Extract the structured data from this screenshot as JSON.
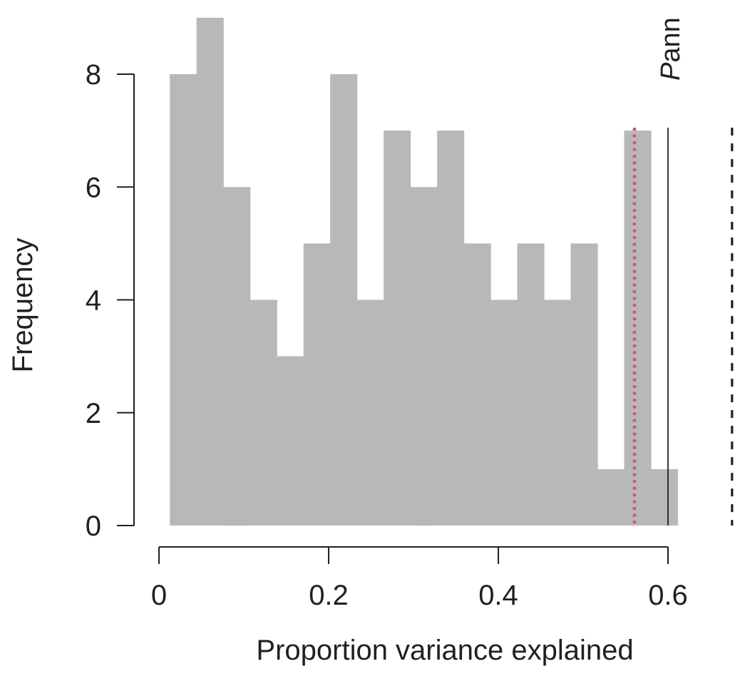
{
  "chart_data": {
    "type": "bar",
    "bin_edges": [
      0.0128,
      0.0443,
      0.0758,
      0.1073,
      0.1388,
      0.1703,
      0.2018,
      0.2333,
      0.2648,
      0.2963,
      0.3278,
      0.3593,
      0.3908,
      0.4223,
      0.4538,
      0.4853,
      0.5168,
      0.5483,
      0.5798,
      0.6113
    ],
    "values": [
      8,
      9,
      6,
      4,
      3,
      5,
      8,
      4,
      7,
      6,
      7,
      5,
      4,
      5,
      4,
      5,
      1,
      7,
      1
    ],
    "title": "",
    "xlabel": "Proportion variance explained",
    "ylabel": "Frequency",
    "xlim": [
      0,
      0.6
    ],
    "ylim": [
      0,
      8
    ],
    "x_ticks": [
      0,
      0.2,
      0.4,
      0.6
    ],
    "x_tick_labels": [
      "0",
      "0.2",
      "0.4",
      "0.6"
    ],
    "y_ticks": [
      0,
      2,
      4,
      6,
      8
    ],
    "y_tick_labels": [
      "0",
      "2",
      "4",
      "6",
      "8"
    ],
    "grid": false,
    "reference_lines": [
      {
        "x": 0.5605,
        "style": "dotted",
        "color": "#d4556a",
        "top_value": 7.05
      },
      {
        "x": 0.6,
        "style": "solid",
        "color": "#231f20",
        "top_value": 7.05,
        "label_italic": "P",
        "label_rest": "ann"
      },
      {
        "x": 0.6755,
        "style": "dashed",
        "color": "#231f20",
        "top_value": 7.05
      }
    ]
  }
}
